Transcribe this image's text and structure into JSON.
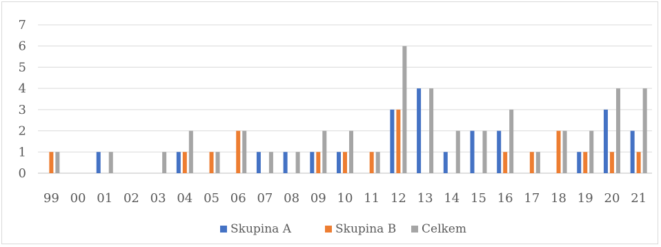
{
  "chart_data": {
    "type": "bar",
    "title": "",
    "xlabel": "",
    "ylabel": "",
    "categories": [
      "99",
      "00",
      "01",
      "02",
      "03",
      "04",
      "05",
      "06",
      "07",
      "08",
      "09",
      "10",
      "11",
      "12",
      "13",
      "14",
      "15",
      "16",
      "17",
      "18",
      "19",
      "20",
      "21"
    ],
    "series": [
      {
        "name": "Skupina A",
        "color": "#4472c4",
        "values": [
          0,
          0,
          1,
          0,
          0,
          1,
          0,
          0,
          1,
          1,
          1,
          1,
          0,
          3,
          4,
          1,
          2,
          2,
          0,
          0,
          1,
          3,
          2
        ]
      },
      {
        "name": "Skupina B",
        "color": "#ed7d31",
        "values": [
          1,
          0,
          0,
          0,
          0,
          1,
          1,
          2,
          0,
          0,
          1,
          1,
          1,
          3,
          0,
          0,
          0,
          1,
          1,
          2,
          1,
          1,
          1
        ]
      },
      {
        "name": "Celkem",
        "color": "#a5a5a5",
        "values": [
          1,
          0,
          1,
          0,
          1,
          2,
          1,
          2,
          1,
          1,
          2,
          2,
          1,
          6,
          4,
          2,
          2,
          3,
          1,
          2,
          2,
          4,
          4
        ]
      }
    ],
    "ylim": [
      0,
      7
    ],
    "yticks": [
      0,
      1,
      2,
      3,
      4,
      5,
      6,
      7
    ],
    "grid": true,
    "legend_position": "bottom",
    "gridline_color": "#d9d9d9"
  }
}
